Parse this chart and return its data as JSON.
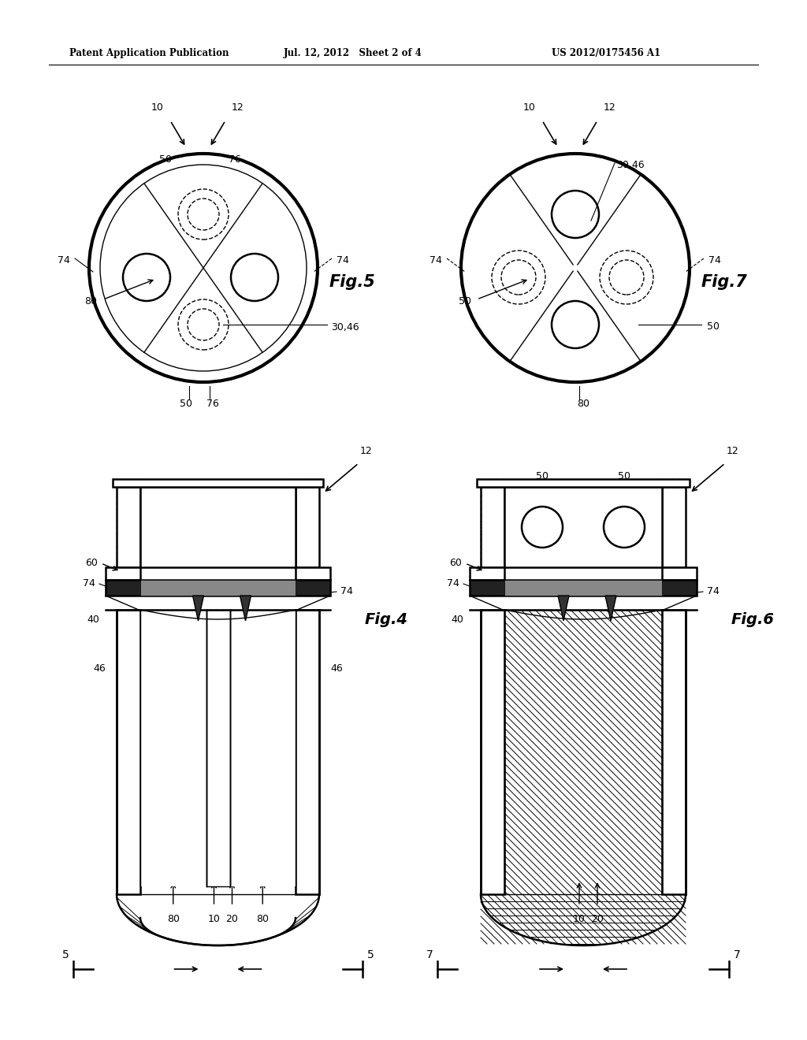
{
  "header_left": "Patent Application Publication",
  "header_mid": "Jul. 12, 2012   Sheet 2 of 4",
  "header_right": "US 2012/0175456 A1",
  "background": "#ffffff",
  "line_color": "#000000",
  "fig5_label": "Fig.5",
  "fig7_label": "Fig.7",
  "fig4_label": "Fig.4",
  "fig6_label": "Fig.6"
}
